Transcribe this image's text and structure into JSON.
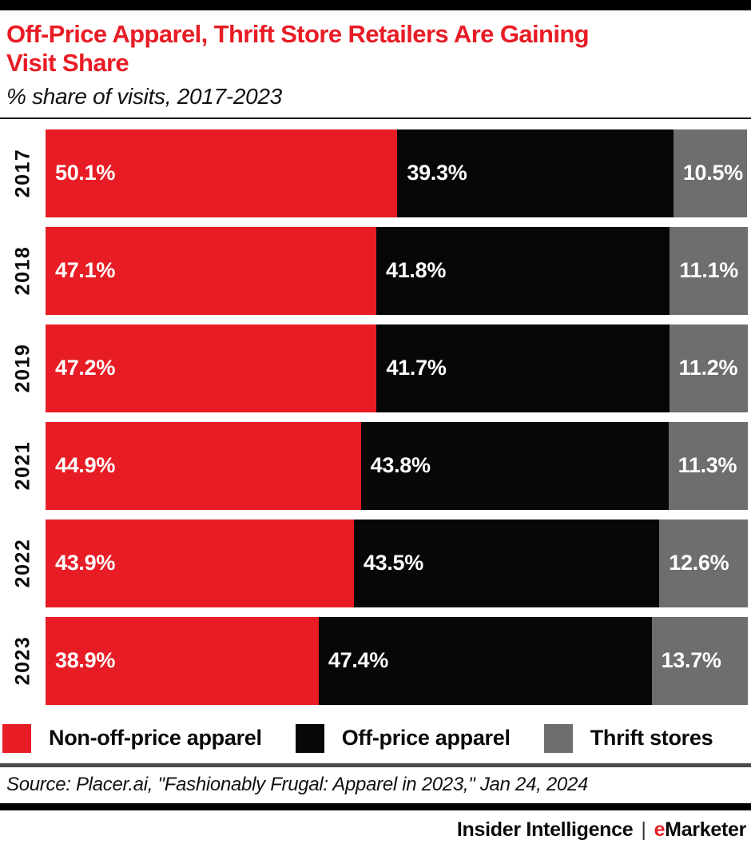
{
  "header": {
    "title_lines": [
      "Off-Price Apparel, Thrift Store Retailers Are Gaining",
      "Visit Share"
    ],
    "subtitle": "% share of visits, 2017-2023"
  },
  "chart_data": {
    "type": "bar",
    "variant": "horizontal-stacked",
    "title": "Off-Price Apparel, Thrift Store Retailers Are Gaining Visit Share",
    "subtitle": "% share of visits, 2017-2023",
    "categories": [
      "2017",
      "2018",
      "2019",
      "2021",
      "2022",
      "2023"
    ],
    "series": [
      {
        "name": "Non-off-price apparel",
        "color": "#e81c25",
        "values": [
          50.1,
          47.1,
          47.2,
          44.9,
          43.9,
          38.9
        ]
      },
      {
        "name": "Off-price apparel",
        "color": "#070707",
        "values": [
          39.3,
          41.8,
          41.7,
          43.8,
          43.5,
          47.4
        ]
      },
      {
        "name": "Thrift stores",
        "color": "#6e6e70",
        "values": [
          10.5,
          11.1,
          11.2,
          11.3,
          12.6,
          13.7
        ]
      }
    ],
    "value_suffix": "%",
    "xlim": [
      0,
      100
    ],
    "grid": false,
    "legend_position": "bottom",
    "data_label_color": "#ffffff"
  },
  "source": {
    "text": "Source: Placer.ai, \"Fashionably Frugal: Apparel in 2023,\" Jan 24, 2024"
  },
  "footer": {
    "left": "Insider Intelligence",
    "separator": "|",
    "emarketer_e": "e",
    "emarketer_rest": "Marketer"
  },
  "colors": {
    "accent_red": "#e81c25",
    "bar_black": "#070707",
    "bar_gray": "#6e6e70",
    "rule_gray": "#4a4a4a"
  }
}
